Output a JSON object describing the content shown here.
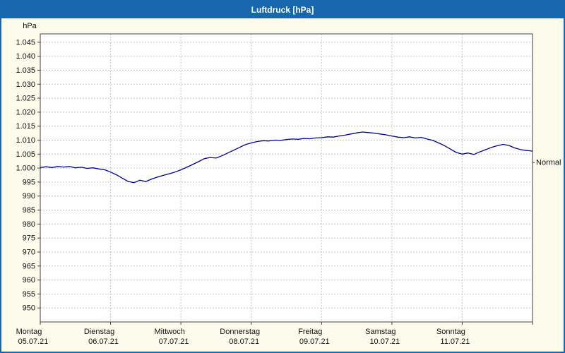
{
  "window": {
    "title": "Luftdruck [hPa]"
  },
  "chart_data": {
    "type": "line",
    "title": "Luftdruck [hPa]",
    "grid": true,
    "legend_position": "none",
    "colors": {
      "titlebar": "#1767ae",
      "background": "#fdfbec",
      "plot_bg": "#ffffff",
      "grid": "#c6c6c6",
      "axis": "#404040",
      "line": "#000099",
      "text": "#111111"
    },
    "y_axis": {
      "unit_label": "hPa",
      "min": 945,
      "max": 1048,
      "tick_values": [
        1045,
        1040,
        1035,
        1030,
        1025,
        1020,
        1015,
        1010,
        1005,
        1000,
        995,
        990,
        985,
        980,
        975,
        970,
        965,
        960,
        955,
        950
      ],
      "tick_labels": [
        "1.045",
        "1.040",
        "1.035",
        "1.030",
        "1.025",
        "1.020",
        "1.015",
        "1.010",
        "1.005",
        "1.000",
        "995",
        "990",
        "985",
        "980",
        "975",
        "970",
        "965",
        "960",
        "955",
        "950"
      ]
    },
    "x_axis": {
      "hours_total": 168,
      "days": [
        {
          "name": "Montag",
          "date": "05.07.21"
        },
        {
          "name": "Dienstag",
          "date": "06.07.21"
        },
        {
          "name": "Mittwoch",
          "date": "07.07.21"
        },
        {
          "name": "Donnerstag",
          "date": "08.07.21"
        },
        {
          "name": "Freitag",
          "date": "09.07.21"
        },
        {
          "name": "Samstag",
          "date": "10.07.21"
        },
        {
          "name": "Sonntag",
          "date": "11.07.21"
        }
      ]
    },
    "series": [
      {
        "name": "Luftdruck",
        "color": "#000099",
        "sample_interval_hours": 2,
        "values": [
          1000.2,
          1000.5,
          1000.2,
          1000.6,
          1000.4,
          1000.6,
          1000.1,
          1000.3,
          999.9,
          1000.1,
          999.7,
          999.4,
          998.6,
          997.6,
          996.4,
          995.2,
          994.8,
          995.7,
          995.2,
          996.1,
          996.8,
          997.4,
          998.0,
          998.6,
          999.4,
          1000.3,
          1001.3,
          1002.3,
          1003.4,
          1003.8,
          1003.6,
          1004.4,
          1005.4,
          1006.4,
          1007.4,
          1008.4,
          1009.0,
          1009.5,
          1009.8,
          1009.7,
          1010.0,
          1009.9,
          1010.2,
          1010.4,
          1010.3,
          1010.6,
          1010.5,
          1010.8,
          1010.9,
          1011.2,
          1011.1,
          1011.5,
          1011.8,
          1012.2,
          1012.6,
          1012.9,
          1012.7,
          1012.5,
          1012.2,
          1011.9,
          1011.5,
          1011.1,
          1010.9,
          1011.2,
          1010.8,
          1011.0,
          1010.4,
          1009.9,
          1009.0,
          1008.0,
          1006.8,
          1005.6,
          1005.0,
          1005.4,
          1004.9,
          1005.8,
          1006.6,
          1007.4,
          1008.0,
          1008.5,
          1008.1,
          1007.2,
          1006.6,
          1006.3,
          1006.1
        ]
      }
    ],
    "annotations": [
      {
        "text": "Normal",
        "value_hpa": 1002
      }
    ]
  }
}
